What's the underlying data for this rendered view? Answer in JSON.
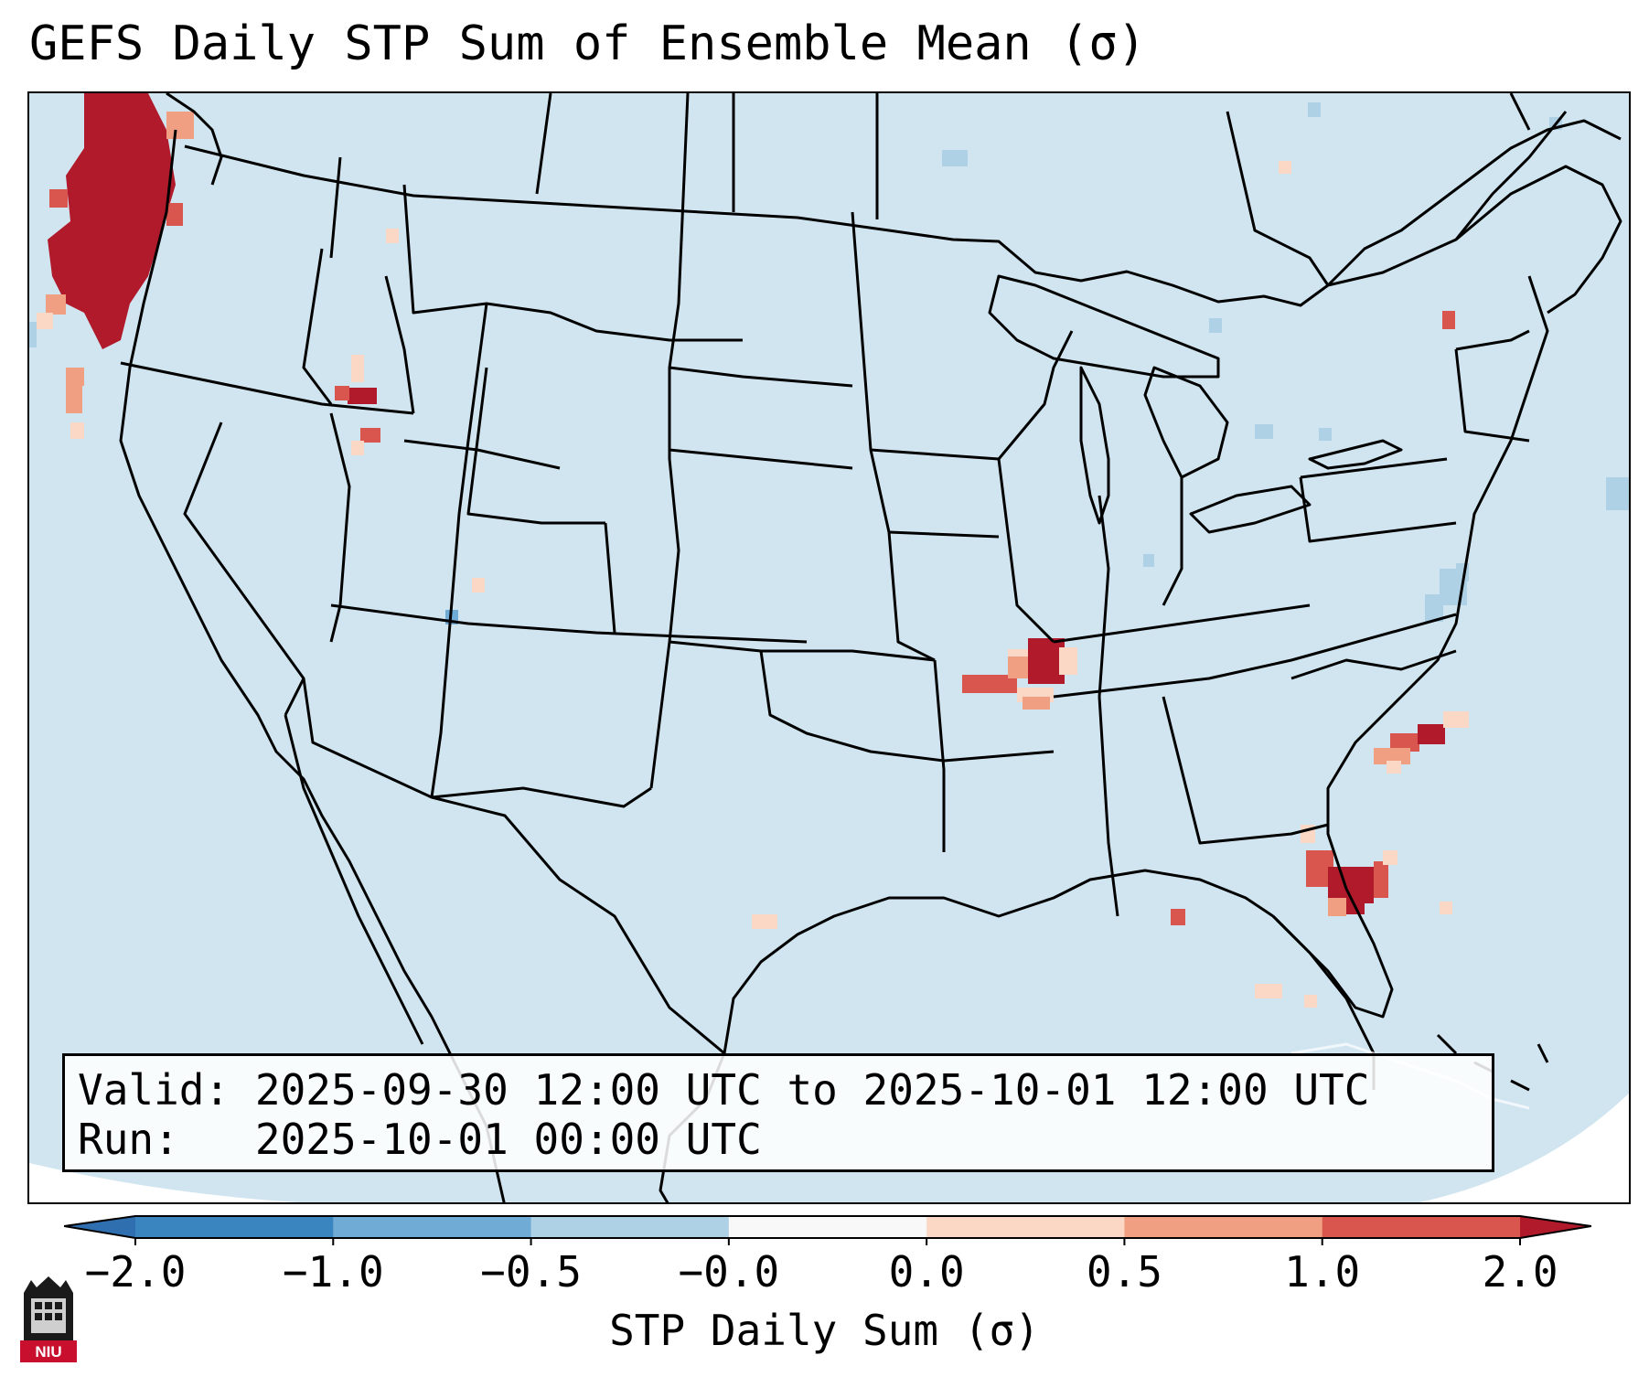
{
  "title": "GEFS Daily STP Sum of Ensemble Mean (σ)",
  "info_box": {
    "valid_label": "Valid:",
    "valid_value": "2025-09-30 12:00 UTC to 2025-10-01 12:00 UTC",
    "run_label": "Run:",
    "run_value": "2025-10-01 00:00 UTC"
  },
  "colorbar": {
    "label": "STP Daily Sum (σ)",
    "ticks": [
      "−2.0",
      "−1.0",
      "−0.5",
      "−0.0",
      "0.0",
      "0.5",
      "1.0",
      "2.0"
    ],
    "bin_colors": [
      "#3a85c0",
      "#6fabd5",
      "#aed1e6",
      "#f8f8f8",
      "#fbd8c5",
      "#f09f82",
      "#d9564f"
    ],
    "extend_low_color": "#2f6fb0",
    "extend_high_color": "#b01a2b"
  },
  "map": {
    "background_field_color": "#d1e5f0",
    "outline_color": "#000000",
    "anomaly_regions": [
      {
        "area": "Pacific Northwest coast",
        "level": "high"
      },
      {
        "area": "Tennessee",
        "level": "high"
      },
      {
        "area": "Western Atlantic",
        "level": "high"
      },
      {
        "area": "Idaho",
        "level": "high"
      }
    ]
  },
  "logo": {
    "text": "NIU",
    "icon": "university-tower-icon"
  }
}
